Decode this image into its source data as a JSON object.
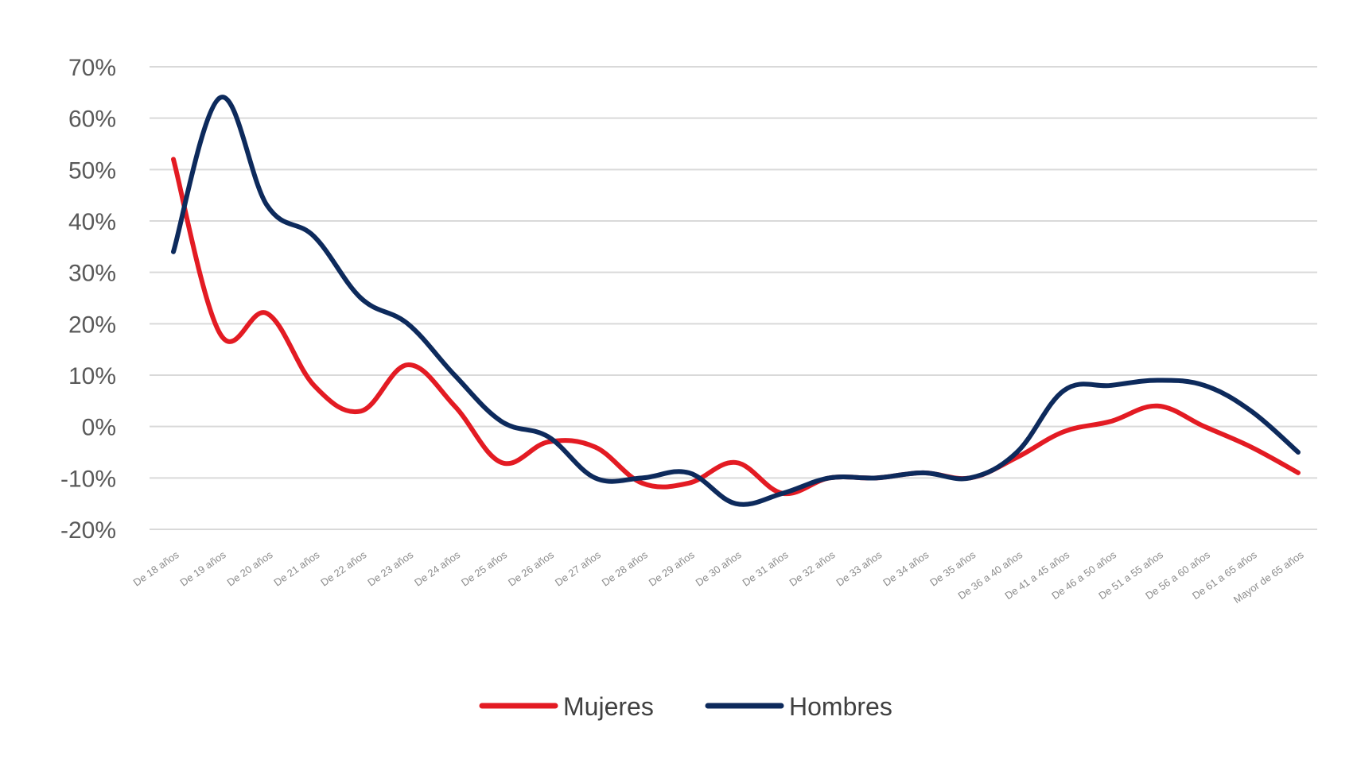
{
  "chart_data": {
    "type": "line",
    "title": "",
    "xlabel": "",
    "ylabel": "",
    "ylim": [
      -20,
      70
    ],
    "yticks": [
      {
        "value": 70,
        "label": "70%"
      },
      {
        "value": 60,
        "label": "60%"
      },
      {
        "value": 50,
        "label": "50%"
      },
      {
        "value": 40,
        "label": "40%"
      },
      {
        "value": 30,
        "label": "30%"
      },
      {
        "value": 20,
        "label": "20%"
      },
      {
        "value": 10,
        "label": "10%"
      },
      {
        "value": 0,
        "label": "0%"
      },
      {
        "value": -10,
        "label": "-10%"
      },
      {
        "value": -20,
        "label": "-20%"
      }
    ],
    "grid": true,
    "legend_position": "bottom",
    "categories": [
      "De 18 años",
      "De 19 años",
      "De 20 años",
      "De 21 años",
      "De 22 años",
      "De 23 años",
      "De 24 años",
      "De 25 años",
      "De 26 años",
      "De 27 años",
      "De 28 años",
      "De 29 años",
      "De 30 años",
      "De 31 años",
      "De 32 años",
      "De 33 años",
      "De 34 años",
      "De 35 años",
      "De 36 a 40 años",
      "De 41 a 45 años",
      "De 46 a 50 años",
      "De 51 a 55 años",
      "De 56 a 60 años",
      "De 61 a 65 años",
      "Mayor de 65 años"
    ],
    "series": [
      {
        "name": "Mujeres",
        "color": "#e31b23",
        "values": [
          52,
          18,
          22,
          8,
          3,
          12,
          4,
          -7,
          -3,
          -4,
          -11,
          -11,
          -7,
          -13,
          -10,
          -10,
          -9,
          -10,
          -6,
          -1,
          1,
          4,
          0,
          -4,
          -9
        ]
      },
      {
        "name": "Hombres",
        "color": "#0d2a5c",
        "values": [
          34,
          64,
          43,
          37,
          25,
          20,
          10,
          1,
          -2,
          -10,
          -10,
          -9,
          -15,
          -13,
          -10,
          -10,
          -9,
          -10,
          -5,
          7,
          8,
          9,
          8,
          3,
          -5
        ]
      }
    ]
  }
}
